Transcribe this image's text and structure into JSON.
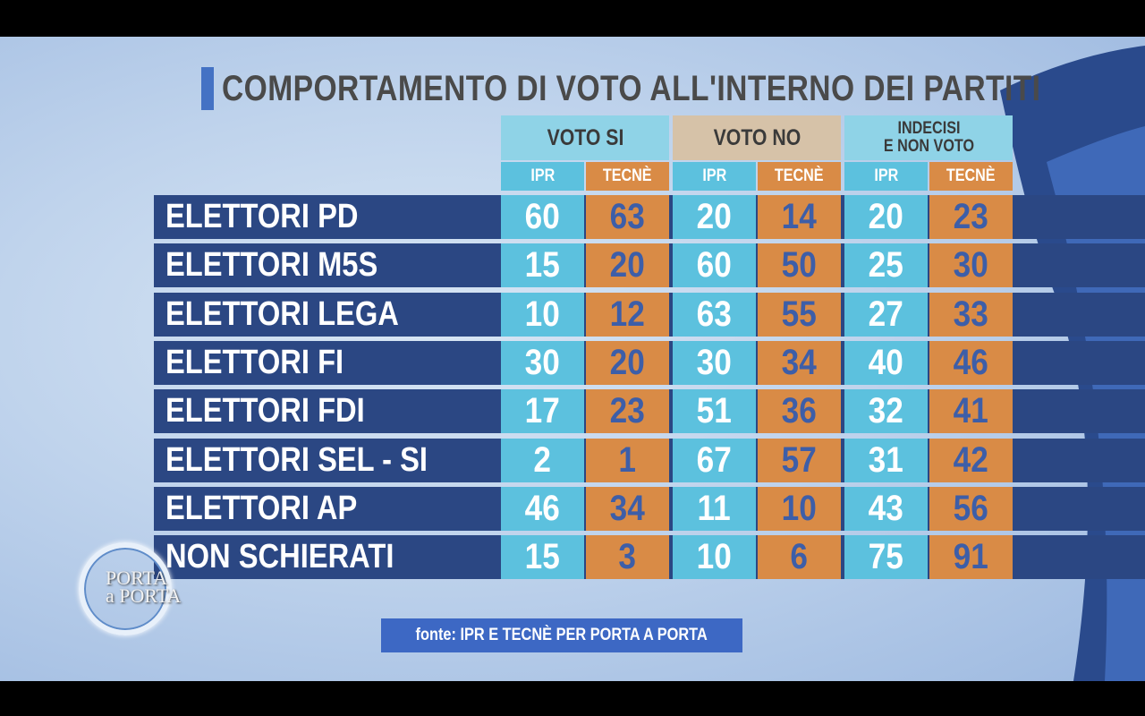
{
  "title": "COMPORTAMENTO DI VOTO ALL'INTERNO DEI PARTITI",
  "source": "fonte: IPR E TECNÈ PER PORTA A PORTA",
  "logo": {
    "line1": "PORTA",
    "line2": "a PORTA"
  },
  "colors": {
    "ipr": "#5cc1de",
    "tecne": "#d98b46",
    "row_bar": "#2b4783",
    "title_accent": "#4472c4",
    "voto_si_head": "#8fd3e7",
    "voto_no_head": "#d6c2a8",
    "indecisi_head": "#8fd3e7"
  },
  "chart_data": {
    "type": "table",
    "title": "COMPORTAMENTO DI VOTO ALL'INTERNO DEI PARTITI",
    "groups": [
      {
        "label": "VOTO SI",
        "sub": [
          "IPR",
          "TECNÈ"
        ]
      },
      {
        "label": "VOTO NO",
        "sub": [
          "IPR",
          "TECNÈ"
        ]
      },
      {
        "label": "INDECISI\nE NON VOTO",
        "sub": [
          "IPR",
          "TECNÈ"
        ]
      }
    ],
    "rows": [
      {
        "label": "ELETTORI PD",
        "values": [
          60,
          63,
          20,
          14,
          20,
          23
        ]
      },
      {
        "label": "ELETTORI M5S",
        "values": [
          15,
          20,
          60,
          50,
          25,
          30
        ]
      },
      {
        "label": "ELETTORI LEGA",
        "values": [
          10,
          12,
          63,
          55,
          27,
          33
        ]
      },
      {
        "label": "ELETTORI FI",
        "values": [
          30,
          20,
          30,
          34,
          40,
          46
        ]
      },
      {
        "label": "ELETTORI FDI",
        "values": [
          17,
          23,
          51,
          36,
          32,
          41
        ]
      },
      {
        "label": "ELETTORI SEL - SI",
        "values": [
          2,
          1,
          67,
          57,
          31,
          42
        ]
      },
      {
        "label": "ELETTORI AP",
        "values": [
          46,
          34,
          11,
          10,
          43,
          56
        ]
      },
      {
        "label": "NON SCHIERATI",
        "values": [
          15,
          3,
          10,
          6,
          75,
          91
        ]
      }
    ],
    "source": "fonte: IPR E TECNÈ PER PORTA A PORTA"
  }
}
